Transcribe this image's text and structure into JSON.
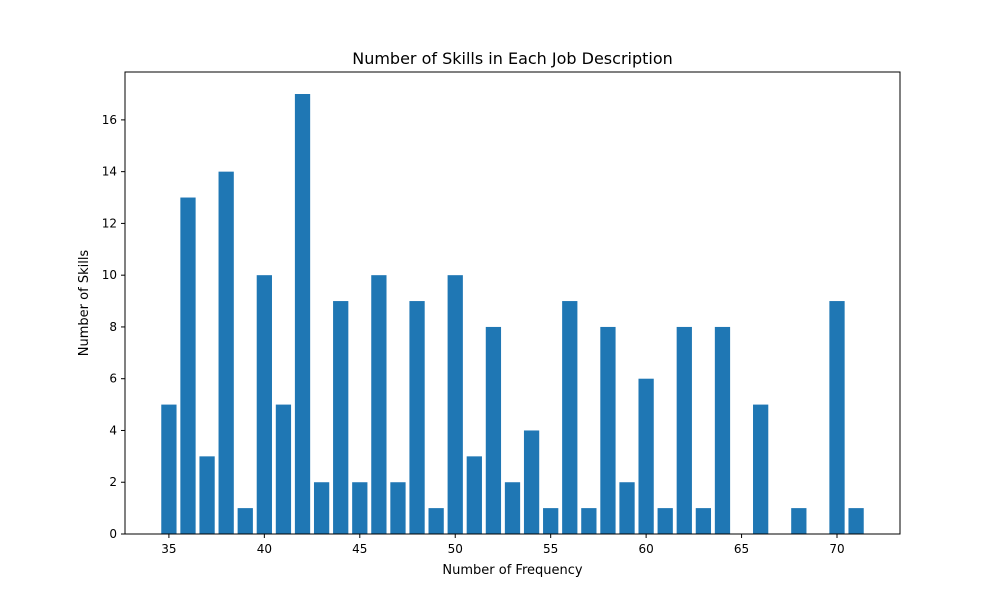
{
  "chart_data": {
    "type": "bar",
    "title": "Number of Skills in Each Job Description",
    "xlabel": "Number of Frequency",
    "ylabel": "Number of Skills",
    "x": [
      35,
      36,
      37,
      38,
      39,
      40,
      41,
      42,
      43,
      44,
      45,
      46,
      47,
      48,
      49,
      50,
      51,
      52,
      53,
      54,
      55,
      56,
      57,
      58,
      59,
      60,
      61,
      62,
      63,
      64,
      66,
      68,
      70,
      71
    ],
    "values": [
      5,
      13,
      3,
      14,
      1,
      10,
      5,
      17,
      2,
      9,
      2,
      10,
      2,
      9,
      1,
      10,
      3,
      8,
      2,
      4,
      1,
      9,
      1,
      8,
      2,
      6,
      1,
      8,
      1,
      8,
      5,
      1,
      9,
      1
    ],
    "xlim": [
      32.7,
      73.3
    ],
    "ylim": [
      0,
      17.85
    ],
    "xticks": [
      35,
      40,
      45,
      50,
      55,
      60,
      65,
      70
    ],
    "yticks": [
      0,
      2,
      4,
      6,
      8,
      10,
      12,
      14,
      16
    ],
    "bar_color": "#1f77b4",
    "grid": false,
    "legend": "none"
  }
}
